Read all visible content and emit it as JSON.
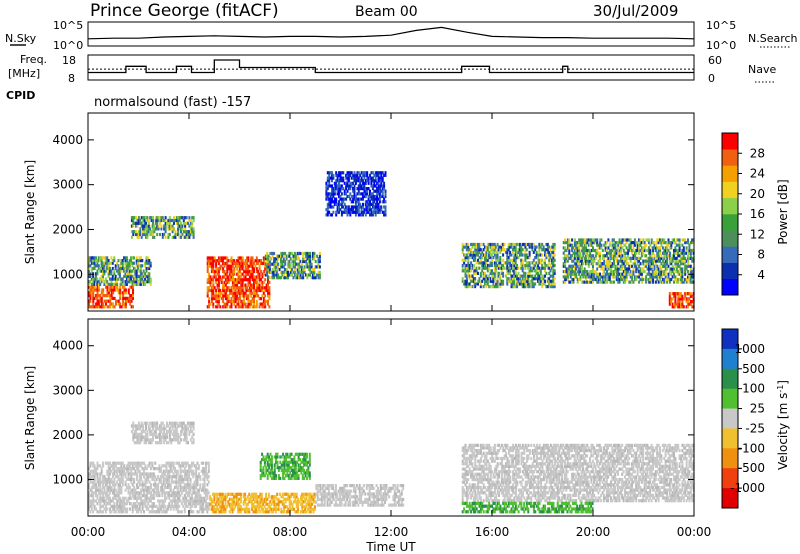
{
  "header": {
    "station": "Prince George (fitACF)",
    "beam": "Beam 00",
    "date": "30/Jul/2009"
  },
  "chart_data": [
    {
      "type": "line",
      "panel": "noise",
      "left_label": "N.Sky",
      "right_label": "N.Search",
      "left_ticks": [
        "10^5",
        "10^0"
      ],
      "right_ticks": [
        "10^5",
        "10^0"
      ],
      "x": [
        "00:00",
        "01:00",
        "02:00",
        "03:00",
        "04:00",
        "05:00",
        "06:00",
        "07:00",
        "08:00",
        "09:00",
        "10:00",
        "11:00",
        "12:00",
        "13:00",
        "14:00",
        "15:00",
        "16:00",
        "17:00",
        "18:00",
        "19:00",
        "20:00",
        "21:00",
        "22:00",
        "23:00",
        "24:00"
      ],
      "series": [
        {
          "values": [
            1.2,
            1.3,
            1.3,
            1.5,
            1.6,
            1.7,
            1.6,
            1.5,
            1.6,
            1.6,
            1.5,
            1.6,
            1.8,
            2.6,
            3.1,
            2.3,
            1.6,
            1.5,
            1.4,
            1.4,
            1.3,
            1.3,
            1.3,
            1.3,
            1.2
          ]
        }
      ]
    },
    {
      "type": "line",
      "panel": "frequency",
      "left_label_top": "Freq.",
      "left_label_bottom": "[MHz]",
      "right_label": "Nave",
      "left_ticks": [
        18,
        8
      ],
      "right_ticks": [
        60,
        0
      ],
      "cpid_label": "CPID",
      "x_hours": [
        0,
        1.5,
        1.5,
        2.3,
        2.3,
        3.5,
        3.5,
        4.1,
        4.1,
        5.0,
        5.0,
        6.0,
        6.0,
        9.0,
        9.0,
        9.4,
        9.4,
        12.8,
        12.8,
        14.8,
        14.8,
        15.9,
        15.9,
        18.8,
        18.8,
        19.0,
        19.0,
        24
      ],
      "freq_mhz": [
        11,
        11,
        13.5,
        13.5,
        11,
        11,
        13.5,
        13.5,
        11,
        11,
        16,
        16,
        13,
        13,
        11,
        11,
        11,
        11,
        11,
        11,
        13.5,
        13.5,
        11,
        11,
        13.5,
        13.5,
        11,
        11
      ],
      "nave_level": 26
    },
    {
      "type": "heatmap",
      "panel": "power",
      "program": "normalsound (fast) -157",
      "ylabel": "Slant Range [km]",
      "yticks": [
        1000,
        2000,
        3000,
        4000
      ],
      "ylim": [
        180,
        4600
      ],
      "colorbar_label": "Power [dB]",
      "colorbar_ticks": [
        4,
        8,
        12,
        16,
        20,
        24,
        28
      ],
      "colorbar_colors": [
        "#0000ff",
        "#0b2fae",
        "#356bb8",
        "#4d8f5a",
        "#3aa13a",
        "#8ccf48",
        "#f0d020",
        "#f5a000",
        "#f06010",
        "#ff0000"
      ],
      "echo_regions": [
        {
          "t0": 0.0,
          "t1": 1.8,
          "r0": 250,
          "r1": 750,
          "level": "high"
        },
        {
          "t0": 0.0,
          "t1": 2.5,
          "r0": 750,
          "r1": 1400,
          "level": "mid"
        },
        {
          "t0": 1.7,
          "t1": 4.2,
          "r0": 1800,
          "r1": 2300,
          "level": "mid"
        },
        {
          "t0": 4.7,
          "t1": 7.2,
          "r0": 250,
          "r1": 1400,
          "level": "high"
        },
        {
          "t0": 7.0,
          "t1": 9.2,
          "r0": 900,
          "r1": 1500,
          "level": "mid"
        },
        {
          "t0": 9.4,
          "t1": 11.8,
          "r0": 2300,
          "r1": 3300,
          "level": "low"
        },
        {
          "t0": 14.8,
          "t1": 18.5,
          "r0": 700,
          "r1": 1700,
          "level": "mid"
        },
        {
          "t0": 18.8,
          "t1": 24.0,
          "r0": 800,
          "r1": 1800,
          "level": "mid"
        },
        {
          "t0": 23.0,
          "t1": 24.0,
          "r0": 250,
          "r1": 600,
          "level": "high"
        }
      ]
    },
    {
      "type": "heatmap",
      "panel": "velocity",
      "ylabel": "Slant Range [km]",
      "yticks": [
        1000,
        2000,
        3000,
        4000
      ],
      "ylim": [
        180,
        4600
      ],
      "xlabel": "Time UT",
      "xticks": [
        "00:00",
        "04:00",
        "08:00",
        "12:00",
        "16:00",
        "20:00",
        "00:00"
      ],
      "colorbar_label": "Velocity [m s^-1]",
      "colorbar_ticks": [
        1000,
        500,
        100,
        25,
        -25,
        -100,
        -500,
        -1000
      ],
      "colorbar_colors": [
        "#1030c0",
        "#2080d0",
        "#2a8f4a",
        "#50c030",
        "#c8c8c8",
        "#f0c030",
        "#f09010",
        "#f04010",
        "#e00000"
      ],
      "echo_regions": [
        {
          "t0": 0.0,
          "t1": 4.8,
          "r0": 250,
          "r1": 1400,
          "level": "grey"
        },
        {
          "t0": 1.7,
          "t1": 4.2,
          "r0": 1800,
          "r1": 2300,
          "level": "grey"
        },
        {
          "t0": 4.8,
          "t1": 9.0,
          "r0": 250,
          "r1": 700,
          "level": "orange"
        },
        {
          "t0": 6.8,
          "t1": 8.8,
          "r0": 1000,
          "r1": 1600,
          "level": "green"
        },
        {
          "t0": 9.0,
          "t1": 12.5,
          "r0": 400,
          "r1": 900,
          "level": "grey"
        },
        {
          "t0": 14.8,
          "t1": 24.0,
          "r0": 500,
          "r1": 1800,
          "level": "grey"
        },
        {
          "t0": 14.8,
          "t1": 20.0,
          "r0": 250,
          "r1": 500,
          "level": "green"
        }
      ]
    }
  ]
}
